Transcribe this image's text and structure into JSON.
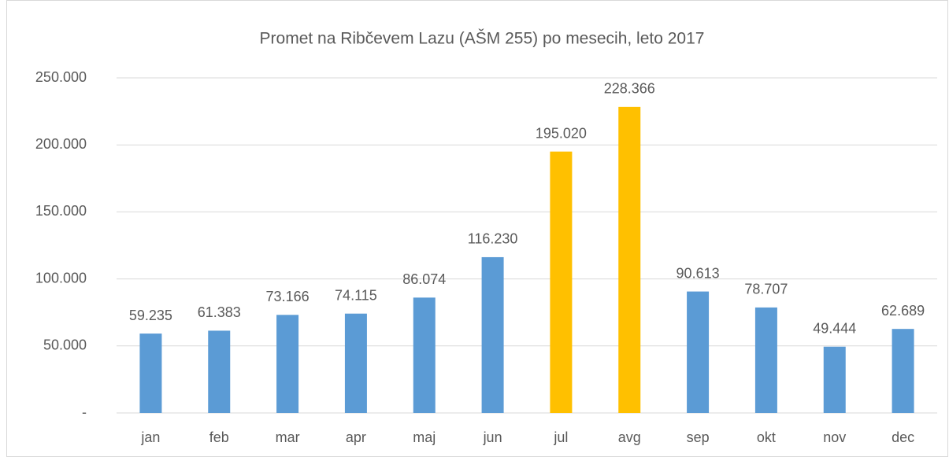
{
  "chart_data": {
    "type": "bar",
    "title": "Promet na Ribčevem Lazu (AŠM 255) po mesecih, leto 2017",
    "categories": [
      "jan",
      "feb",
      "mar",
      "apr",
      "maj",
      "jun",
      "jul",
      "avg",
      "sep",
      "okt",
      "nov",
      "dec"
    ],
    "values": [
      59235,
      61383,
      73166,
      74115,
      86074,
      116230,
      195020,
      228366,
      90613,
      78707,
      49444,
      62689
    ],
    "value_labels": [
      "59.235",
      "61.383",
      "73.166",
      "74.115",
      "86.074",
      "116.230",
      "195.020",
      "228.366",
      "90.613",
      "78.707",
      "49.444",
      "62.689"
    ],
    "colors": [
      "#5b9bd5",
      "#5b9bd5",
      "#5b9bd5",
      "#5b9bd5",
      "#5b9bd5",
      "#5b9bd5",
      "#ffc000",
      "#ffc000",
      "#5b9bd5",
      "#5b9bd5",
      "#5b9bd5",
      "#5b9bd5"
    ],
    "ylim": [
      0,
      250000
    ],
    "yticks": [
      {
        "value": 0,
        "label": "-"
      },
      {
        "value": 50000,
        "label": "50.000"
      },
      {
        "value": 100000,
        "label": "100.000"
      },
      {
        "value": 150000,
        "label": "150.000"
      },
      {
        "value": 200000,
        "label": "200.000"
      },
      {
        "value": 250000,
        "label": "250.000"
      }
    ],
    "grid": true
  }
}
